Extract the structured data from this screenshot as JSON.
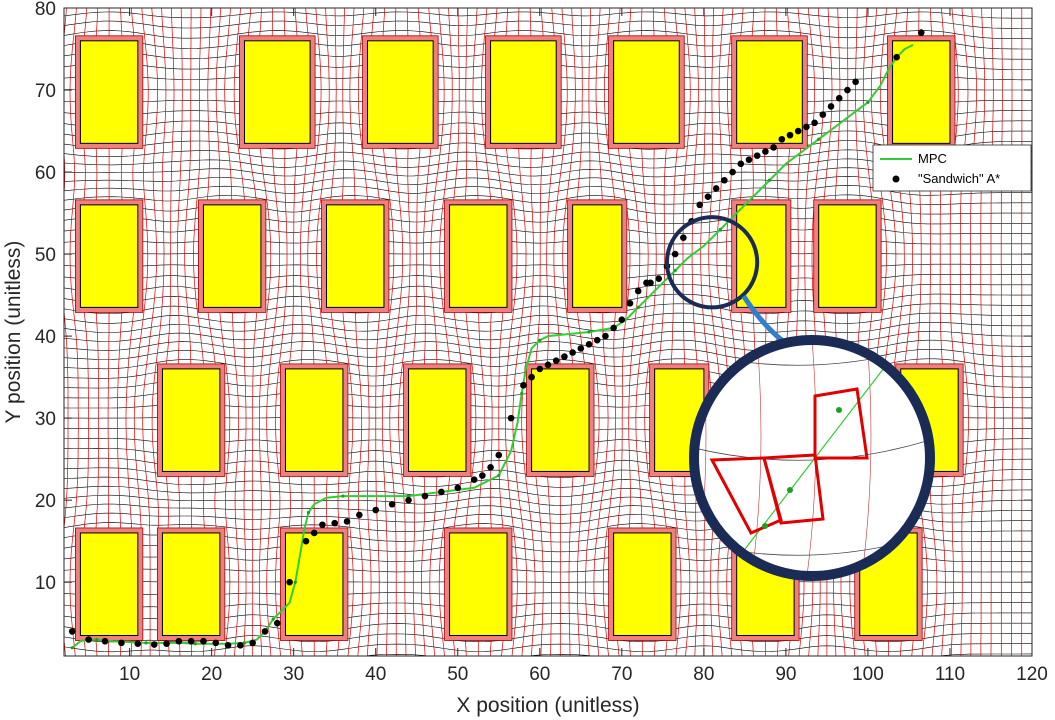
{
  "chart_data": {
    "type": "line",
    "xlabel": "X position (unitless)",
    "ylabel": "Y position (unitless)",
    "xlim": [
      2,
      120
    ],
    "ylim": [
      1,
      80
    ],
    "xticks": [
      10,
      20,
      30,
      40,
      50,
      60,
      70,
      80,
      90,
      100,
      110,
      120
    ],
    "yticks": [
      10,
      20,
      30,
      40,
      50,
      60,
      70,
      80
    ],
    "legend_position": "top-right",
    "colors": {
      "mpc": "#33cc33",
      "astar": "#000000",
      "obstacle_fill": "#ffff00",
      "obstacle_inflated": "#f08080",
      "grid_red": "#e00000",
      "grid_black": "#000000",
      "inset_ring": "#1a2b55",
      "arrow": "#2f7fcf"
    },
    "obstacles": [
      {
        "x": [
          4,
          11
        ],
        "y": [
          63.5,
          76
        ]
      },
      {
        "x": [
          24,
          32
        ],
        "y": [
          63.5,
          76
        ]
      },
      {
        "x": [
          39,
          47
        ],
        "y": [
          63.5,
          76
        ]
      },
      {
        "x": [
          54,
          62
        ],
        "y": [
          63.5,
          76
        ]
      },
      {
        "x": [
          69,
          77
        ],
        "y": [
          63.5,
          76
        ]
      },
      {
        "x": [
          84,
          92
        ],
        "y": [
          63.5,
          76
        ]
      },
      {
        "x": [
          103,
          110
        ],
        "y": [
          63.5,
          76
        ]
      },
      {
        "x": [
          4,
          11
        ],
        "y": [
          43.5,
          56
        ]
      },
      {
        "x": [
          19,
          26
        ],
        "y": [
          43.5,
          56
        ]
      },
      {
        "x": [
          34,
          41
        ],
        "y": [
          43.5,
          56
        ]
      },
      {
        "x": [
          49,
          56
        ],
        "y": [
          43.5,
          56
        ]
      },
      {
        "x": [
          64,
          70
        ],
        "y": [
          43.5,
          56
        ]
      },
      {
        "x": [
          84,
          90
        ],
        "y": [
          43.5,
          56
        ]
      },
      {
        "x": [
          94,
          101
        ],
        "y": [
          43.5,
          56
        ]
      },
      {
        "x": [
          14,
          21
        ],
        "y": [
          23.5,
          36
        ]
      },
      {
        "x": [
          29,
          36
        ],
        "y": [
          23.5,
          36
        ]
      },
      {
        "x": [
          44,
          51
        ],
        "y": [
          23.5,
          36
        ]
      },
      {
        "x": [
          59,
          66
        ],
        "y": [
          23.5,
          36
        ]
      },
      {
        "x": [
          74,
          80
        ],
        "y": [
          23.5,
          36
        ]
      },
      {
        "x": [
          104,
          111
        ],
        "y": [
          23.5,
          36
        ]
      },
      {
        "x": [
          4,
          11
        ],
        "y": [
          3.5,
          16
        ]
      },
      {
        "x": [
          14,
          21
        ],
        "y": [
          3.5,
          16
        ]
      },
      {
        "x": [
          29,
          36
        ],
        "y": [
          3.5,
          16
        ]
      },
      {
        "x": [
          49,
          56
        ],
        "y": [
          3.5,
          16
        ]
      },
      {
        "x": [
          69,
          76
        ],
        "y": [
          3.5,
          16
        ]
      },
      {
        "x": [
          84,
          91
        ],
        "y": [
          3.5,
          16
        ]
      },
      {
        "x": [
          99,
          106
        ],
        "y": [
          3.5,
          16
        ]
      }
    ],
    "series": [
      {
        "name": "MPC",
        "style": "line",
        "x": [
          3,
          4,
          5,
          6,
          8,
          10,
          12,
          14,
          16,
          18,
          20,
          22,
          24,
          25.5,
          26.5,
          27.5,
          28.5,
          29.5,
          30.2,
          30.8,
          31.3,
          31.8,
          32.5,
          34,
          36,
          38,
          40,
          44,
          48,
          52,
          55,
          56.5,
          57.3,
          57.8,
          58.3,
          59,
          60,
          61,
          63,
          66,
          69,
          70.5,
          72,
          73.5,
          75,
          76.5,
          78,
          80,
          82,
          84,
          86,
          88,
          90,
          92,
          94,
          96,
          98,
          100,
          101.5,
          102.5,
          103.5,
          104.5,
          105.5
        ],
        "y": [
          2,
          2.8,
          3,
          3,
          2.8,
          2.7,
          2.6,
          2.6,
          2.6,
          2.5,
          2.5,
          2.5,
          2.6,
          3,
          4,
          5.5,
          6.5,
          7.5,
          10,
          13.5,
          16.5,
          18.5,
          19.5,
          20.3,
          20.5,
          20.5,
          20.5,
          20.5,
          21,
          21.5,
          23,
          26,
          29.5,
          33,
          36,
          38.5,
          39.5,
          40,
          40.2,
          40.5,
          41,
          42,
          43.5,
          45,
          46.5,
          48,
          49.5,
          51,
          53,
          55,
          57,
          59,
          61,
          62.5,
          64,
          65.5,
          67,
          68.5,
          70.5,
          72.5,
          74,
          75,
          75.5
        ]
      },
      {
        "name": "\"Sandwich\" A*",
        "style": "points",
        "x": [
          3,
          5,
          7,
          9,
          11,
          13,
          14.5,
          16,
          17.5,
          19,
          20.5,
          22,
          23.5,
          25,
          26.5,
          28,
          29.5,
          31.5,
          32.5,
          33.5,
          35,
          36.5,
          38,
          40,
          42,
          44,
          46,
          48,
          50,
          52,
          53,
          54,
          55,
          56.5,
          58,
          59,
          60,
          61,
          62,
          63,
          64,
          65,
          66,
          67,
          68,
          69,
          70,
          71,
          72,
          73,
          73.5,
          74.5,
          75.5,
          76.5,
          77.5,
          78.5,
          79.5,
          80.5,
          81.5,
          82.5,
          83.5,
          84.5,
          85.5,
          86.5,
          87.5,
          88.5,
          89.5,
          90.5,
          91.5,
          92.5,
          93.5,
          94.5,
          95.5,
          96.5,
          97.5,
          98.5,
          103.5,
          106.5
        ],
        "y": [
          4,
          3,
          2.8,
          2.6,
          2.5,
          2.4,
          2.5,
          2.8,
          2.8,
          2.8,
          2.6,
          2.3,
          2.3,
          2.6,
          4,
          5,
          10,
          15,
          16,
          17,
          17.2,
          17.4,
          18.2,
          18.8,
          19.5,
          20,
          20.5,
          21,
          21.5,
          22.5,
          23,
          24,
          25.5,
          30,
          34,
          35,
          36,
          36.5,
          37,
          37.5,
          38,
          38.5,
          39,
          39.5,
          40,
          41,
          42,
          44,
          45.5,
          46.5,
          46.5,
          47,
          48.5,
          50,
          52,
          54,
          56,
          57,
          58,
          59,
          60,
          61,
          61.5,
          62,
          62.5,
          63,
          64,
          64.5,
          65,
          65.5,
          66,
          67,
          68,
          69,
          70,
          71,
          74,
          77
        ]
      }
    ],
    "inset": {
      "source_center": [
        81,
        49
      ],
      "source_radius_units": [
        5.5,
        5.5
      ]
    }
  }
}
